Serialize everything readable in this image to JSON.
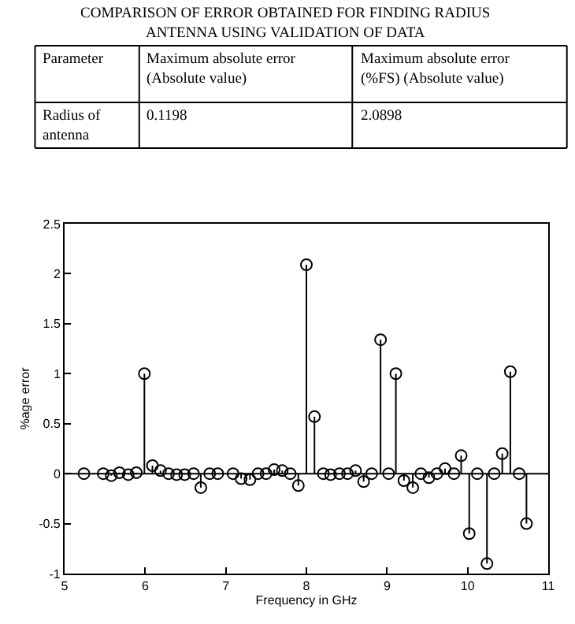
{
  "chart_data": {
    "type": "lollipop",
    "title": "COMPARISON OF ERROR OBTAINED FOR FINDING RADIUS ANTENNA USING VALIDATION OF DATA",
    "annotations": [
      "Parameter",
      "Maximum absolute error (Absolute value)",
      "Maximum absolute error (%FS) (Absolute value)",
      "Radius of antenna",
      "0.1198",
      "2.0898"
    ],
    "xlabel": "Frequency in GHz",
    "ylabel": "%age error",
    "x": [
      5.24,
      5.48,
      5.58,
      5.68,
      5.79,
      5.89,
      5.99,
      6.09,
      6.19,
      6.29,
      6.39,
      6.49,
      6.6,
      6.69,
      6.8,
      6.9,
      7.09,
      7.19,
      7.3,
      7.4,
      7.5,
      7.6,
      7.7,
      7.8,
      7.9,
      8.0,
      8.1,
      8.21,
      8.3,
      8.41,
      8.51,
      8.61,
      8.71,
      8.81,
      8.92,
      9.02,
      9.11,
      9.21,
      9.32,
      9.42,
      9.52,
      9.62,
      9.72,
      9.83,
      9.92,
      10.02,
      10.12,
      10.24,
      10.33,
      10.43,
      10.53,
      10.64,
      10.73
    ],
    "values": [
      0,
      0,
      -0.02,
      0.01,
      -0.01,
      0.01,
      1.0,
      0.08,
      0.03,
      0,
      -0.01,
      -0.01,
      0,
      -0.14,
      0,
      0,
      0,
      -0.05,
      -0.06,
      0,
      0,
      0.04,
      0.03,
      0,
      -0.12,
      2.09,
      0.57,
      0,
      -0.01,
      0,
      0,
      0.03,
      -0.08,
      0,
      1.34,
      0,
      1.0,
      -0.07,
      -0.14,
      0,
      -0.04,
      0,
      0.05,
      0,
      0.18,
      -0.6,
      0,
      -0.9,
      0,
      0.2,
      1.02,
      0,
      -0.5
    ],
    "color": "#000000",
    "marker": "circle",
    "ref_lines": [
      {
        "axis": "y",
        "value": 0,
        "color": "#000000"
      }
    ],
    "xlim": [
      5,
      11
    ],
    "xticks": [
      5,
      6,
      7,
      8,
      9,
      10,
      11
    ],
    "ylim": [
      -1,
      2.5
    ],
    "yticks": [
      -1,
      -0.5,
      0,
      0.5,
      1,
      1.5,
      2,
      2.5
    ]
  }
}
